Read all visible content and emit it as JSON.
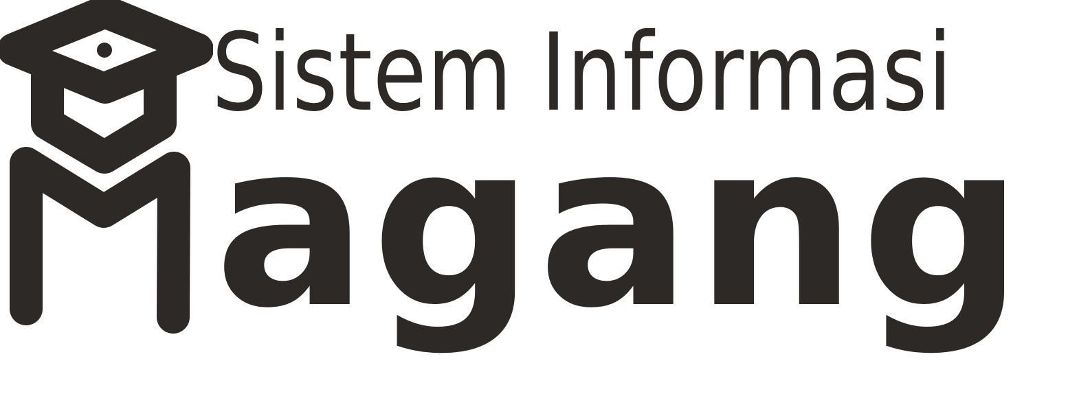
{
  "logo": {
    "subtitle": "Sistem Informasi",
    "title": "agang",
    "ink_color": "#2d2927",
    "mark_icon": "graduation-cap-m-icon"
  }
}
